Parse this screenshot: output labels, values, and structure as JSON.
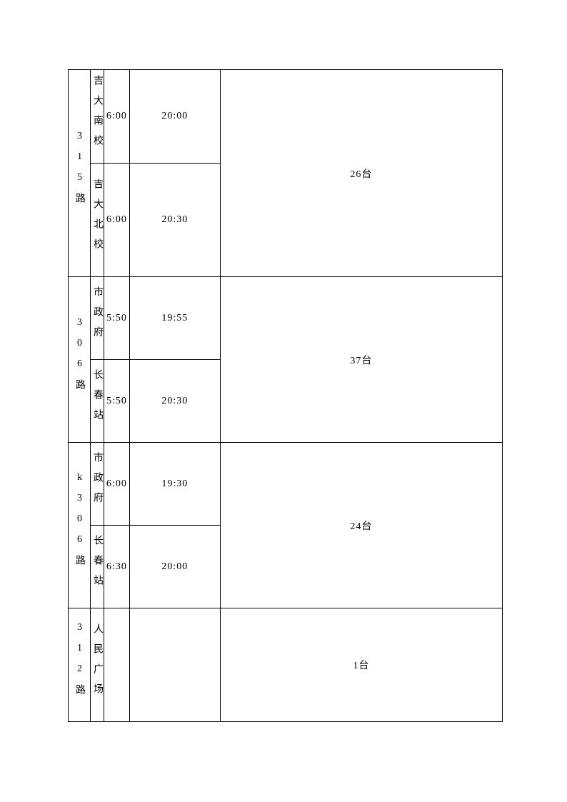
{
  "table": {
    "border_color": "#000000",
    "background_color": "#ffffff",
    "font_size": 14,
    "font_family": "SimSun",
    "rows": [
      {
        "route": "315路",
        "count": "26台",
        "stations": [
          {
            "name": "吉大南校",
            "time1": "6:00",
            "time2": "20:00",
            "height": 131
          },
          {
            "name": "吉大北校",
            "time1": "6:00",
            "time2": "20:30",
            "height": 159
          }
        ]
      },
      {
        "route": "306路",
        "count": "37台",
        "stations": [
          {
            "name": "市政府",
            "time1": "5:50",
            "time2": "19:55",
            "height": 116
          },
          {
            "name": "长春站",
            "time1": "5:50",
            "time2": "20:30",
            "height": 116
          }
        ]
      },
      {
        "route": "k306路",
        "count": "24台",
        "stations": [
          {
            "name": "市政府",
            "time1": "6:00",
            "time2": "19:30",
            "height": 116
          },
          {
            "name": "长春站",
            "time1": "6:30",
            "time2": "20:00",
            "height": 116
          }
        ]
      },
      {
        "route": "312路",
        "count": "1台",
        "stations": [
          {
            "name": "人民广场",
            "time1": "",
            "time2": "",
            "height": 159
          }
        ]
      }
    ],
    "column_widths": {
      "route": 31,
      "station": 19,
      "time1": 36,
      "time2": 127,
      "count": 396
    }
  }
}
